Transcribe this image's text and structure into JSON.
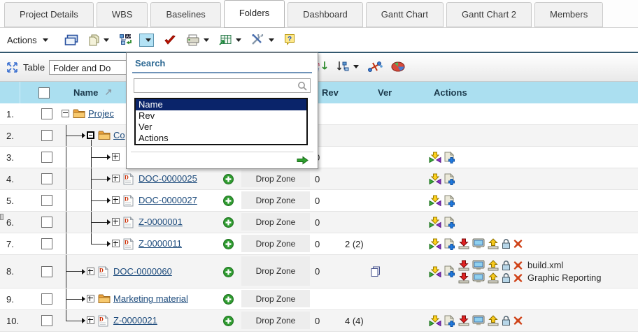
{
  "tabs": [
    {
      "label": "Project Details",
      "active": false
    },
    {
      "label": "WBS",
      "active": false
    },
    {
      "label": "Baselines",
      "active": false
    },
    {
      "label": "Folders",
      "active": true
    },
    {
      "label": "Dashboard",
      "active": false
    },
    {
      "label": "Gantt Chart",
      "active": false
    },
    {
      "label": "Gantt Chart 2",
      "active": false
    },
    {
      "label": "Members",
      "active": false
    }
  ],
  "toolbar1": {
    "actions_label": "Actions",
    "icons": [
      {
        "name": "cascade-windows-icon",
        "caret": false,
        "active": false
      },
      {
        "name": "copy-document-icon",
        "caret": true,
        "active": false
      },
      {
        "name": "structure-search-icon",
        "caret": false,
        "active": false
      },
      {
        "name": "search-dropdown-toggle",
        "caret": true,
        "active": true
      },
      {
        "name": "validate-check-icon",
        "caret": false,
        "active": false
      },
      {
        "name": "print-icon",
        "caret": true,
        "active": false
      },
      {
        "name": "export-table-icon",
        "caret": true,
        "active": false
      },
      {
        "name": "tools-icon",
        "caret": true,
        "active": false
      },
      {
        "name": "help-icon",
        "caret": false,
        "active": false
      }
    ]
  },
  "toolbar2": {
    "fit_icon": "fit-to-window-icon",
    "table_label": "Table",
    "view_select_value": "Folder and Do",
    "right_icons": [
      {
        "name": "sort-alphabetical-icon",
        "caret": false
      },
      {
        "name": "sort-structure-icon",
        "caret": true
      },
      {
        "name": "remove-filter-icon",
        "caret": false
      },
      {
        "name": "chart-view-icon",
        "caret": false
      }
    ]
  },
  "search_panel": {
    "title": "Search",
    "input_value": "",
    "options": [
      "Name",
      "Rev",
      "Ver",
      "Actions"
    ],
    "selected_option": "Name",
    "magnifier_icon": "magnifier-icon",
    "go_icon": "go-arrow-icon"
  },
  "table": {
    "headers": {
      "name": "Name",
      "rev": "Rev",
      "ver": "Ver",
      "actions": "Actions"
    },
    "drop_zone_label": "Drop Zone",
    "rows": [
      {
        "num": "1.",
        "depth": 0,
        "expand": "minus",
        "expand_strong": false,
        "icon": "folder",
        "name": "Projec",
        "plus": false,
        "drop_zone": false,
        "rev": "",
        "ver": "",
        "ver_icon": null,
        "actions": [],
        "files": []
      },
      {
        "num": "2.",
        "depth": 1,
        "expand": "minus",
        "expand_strong": true,
        "icon": "folder",
        "name": "Co",
        "plus": false,
        "drop_zone": false,
        "rev": "",
        "ver": "",
        "ver_icon": null,
        "actions": [],
        "files": []
      },
      {
        "num": "3.",
        "depth": 2,
        "expand": "plus",
        "expand_strong": false,
        "icon": null,
        "name": "",
        "plus": false,
        "drop_zone": false,
        "rev": "0",
        "ver": "",
        "ver_icon": null,
        "actions": [
          "add-to-route",
          "create-document"
        ],
        "files": []
      },
      {
        "num": "4.",
        "depth": 2,
        "expand": "plus",
        "expand_strong": false,
        "icon": "document",
        "name": "DOC-0000025",
        "plus": true,
        "drop_zone": true,
        "rev": "0",
        "ver": "",
        "ver_icon": null,
        "actions": [
          "add-to-route",
          "create-document"
        ],
        "files": []
      },
      {
        "num": "5.",
        "depth": 2,
        "expand": "plus",
        "expand_strong": false,
        "icon": "document",
        "name": "DOC-0000027",
        "plus": true,
        "drop_zone": true,
        "rev": "0",
        "ver": "",
        "ver_icon": null,
        "actions": [
          "add-to-route",
          "create-document"
        ],
        "files": []
      },
      {
        "num": "6.",
        "depth": 2,
        "expand": "plus",
        "expand_strong": false,
        "icon": "document",
        "name": "Z-0000001",
        "plus": true,
        "drop_zone": true,
        "rev": "0",
        "ver": "",
        "ver_icon": null,
        "actions": [
          "add-to-route",
          "create-document"
        ],
        "files": []
      },
      {
        "num": "7.",
        "depth": 2,
        "expand": "plus",
        "expand_strong": false,
        "icon": "document",
        "name": "Z-0000011",
        "plus": true,
        "drop_zone": true,
        "rev": "0",
        "ver": "2 (2)",
        "ver_icon": null,
        "actions": [
          "add-to-route",
          "create-document",
          "download",
          "preview",
          "check-in",
          "lock",
          "delete"
        ],
        "files": []
      },
      {
        "num": "8.",
        "depth": 1,
        "expand": "plus",
        "expand_strong": false,
        "icon": "document",
        "name": "DOC-0000060",
        "plus": true,
        "drop_zone": true,
        "rev": "0",
        "ver": "",
        "ver_icon": "copy-stack",
        "actions": [
          "add-to-route",
          "create-document"
        ],
        "files": [
          {
            "icons": [
              "download",
              "preview",
              "check-in",
              "lock",
              "delete"
            ],
            "label": "build.xml"
          },
          {
            "icons": [
              "download",
              "preview",
              "check-in",
              "lock",
              "delete"
            ],
            "label": "Graphic Reporting"
          }
        ]
      },
      {
        "num": "9.",
        "depth": 1,
        "expand": "plus",
        "expand_strong": false,
        "icon": "folder",
        "name": "Marketing material",
        "plus": true,
        "drop_zone": true,
        "rev": "",
        "ver": "",
        "ver_icon": null,
        "actions": [],
        "files": []
      },
      {
        "num": "10.",
        "depth": 1,
        "expand": "plus",
        "expand_strong": false,
        "icon": "document",
        "name": "Z-0000021",
        "plus": true,
        "drop_zone": true,
        "rev": "0",
        "ver": "4 (4)",
        "ver_icon": null,
        "actions": [
          "add-to-route",
          "create-document",
          "download",
          "preview",
          "check-in",
          "lock",
          "delete"
        ],
        "files": []
      }
    ]
  },
  "colors": {
    "header_bg": "#abdff0",
    "row_alt_bg": "#f4f4f4",
    "link": "#1d4b7c",
    "selection_bg": "#0a246a",
    "toolbar_rule": "#33586e",
    "search_title": "#2f6a94",
    "add_button_green": "#2f9b30",
    "delete_red": "#cf4218"
  }
}
